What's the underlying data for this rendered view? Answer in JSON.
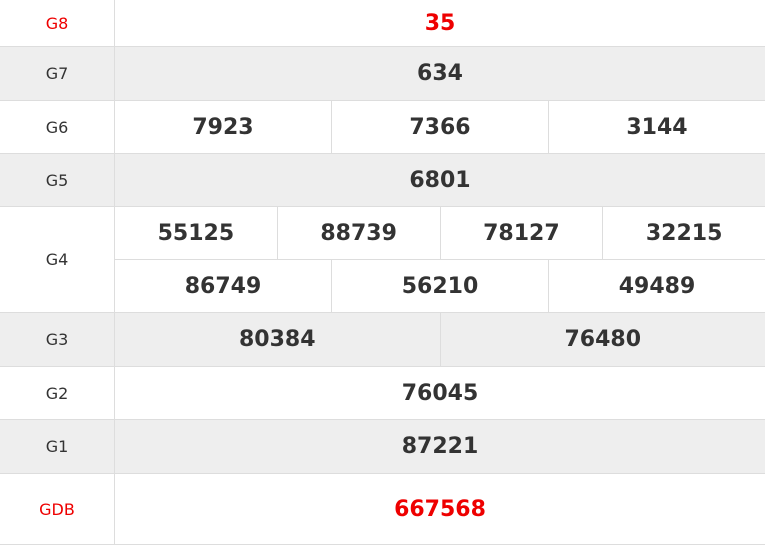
{
  "prizes": [
    {
      "label": "G8",
      "rows": [
        [
          "35"
        ]
      ]
    },
    {
      "label": "G7",
      "rows": [
        [
          "634"
        ]
      ]
    },
    {
      "label": "G6",
      "rows": [
        [
          "7923",
          "7366",
          "3144"
        ]
      ]
    },
    {
      "label": "G5",
      "rows": [
        [
          "6801"
        ]
      ]
    },
    {
      "label": "G4",
      "rows": [
        [
          "55125",
          "88739",
          "78127",
          "32215"
        ],
        [
          "86749",
          "56210",
          "49489"
        ]
      ]
    },
    {
      "label": "G3",
      "rows": [
        [
          "80384",
          "76480"
        ]
      ]
    },
    {
      "label": "G2",
      "rows": [
        [
          "76045"
        ]
      ]
    },
    {
      "label": "G1",
      "rows": [
        [
          "87221"
        ]
      ]
    },
    {
      "label": "GDB",
      "rows": [
        [
          "667568"
        ]
      ]
    }
  ],
  "colors": {
    "highlight": "#ee0000",
    "text": "#333333",
    "alt_row": "#eeeeee",
    "border": "#dddddd"
  }
}
